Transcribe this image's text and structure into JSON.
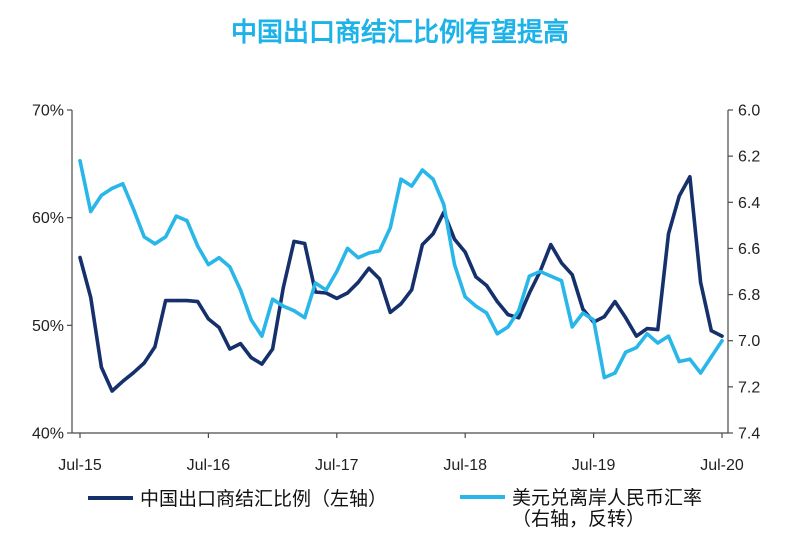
{
  "chart_data": {
    "type": "line",
    "title": "中国出口商结汇比例有望提高",
    "title_color": "#1db3e8",
    "x": [
      "Jul-15",
      "Aug-15",
      "Sep-15",
      "Oct-15",
      "Nov-15",
      "Dec-15",
      "Jan-16",
      "Feb-16",
      "Mar-16",
      "Apr-16",
      "May-16",
      "Jun-16",
      "Jul-16",
      "Aug-16",
      "Sep-16",
      "Oct-16",
      "Nov-16",
      "Dec-16",
      "Jan-17",
      "Feb-17",
      "Mar-17",
      "Apr-17",
      "May-17",
      "Jun-17",
      "Jul-17",
      "Aug-17",
      "Sep-17",
      "Oct-17",
      "Nov-17",
      "Dec-17",
      "Jan-18",
      "Feb-18",
      "Mar-18",
      "Apr-18",
      "May-18",
      "Jun-18",
      "Jul-18",
      "Aug-18",
      "Sep-18",
      "Oct-18",
      "Nov-18",
      "Dec-18",
      "Jan-19",
      "Feb-19",
      "Mar-19",
      "Apr-19",
      "May-19",
      "Jun-19",
      "Jul-19",
      "Aug-19",
      "Sep-19",
      "Oct-19",
      "Nov-19",
      "Dec-19",
      "Jan-20",
      "Feb-20",
      "Mar-20",
      "Apr-20",
      "May-20",
      "Jun-20",
      "Jul-20"
    ],
    "x_tick_labels": [
      "Jul-15",
      "Jul-16",
      "Jul-17",
      "Jul-18",
      "Jul-19",
      "Jul-20"
    ],
    "y_left": {
      "range": [
        40,
        70
      ],
      "ticks": [
        40,
        50,
        60,
        70
      ],
      "tick_labels": [
        "40%",
        "50%",
        "60%",
        "70%"
      ]
    },
    "y_right": {
      "range": [
        6.0,
        7.4
      ],
      "reversed": true,
      "ticks": [
        6.0,
        6.2,
        6.4,
        6.6,
        6.8,
        7.0,
        7.2,
        7.4
      ],
      "tick_labels": [
        "6.0",
        "6.2",
        "6.4",
        "6.6",
        "6.8",
        "7.0",
        "7.2",
        "7.4"
      ]
    },
    "grid": false,
    "legend_position": "bottom",
    "series": [
      {
        "name": "中国出口商结汇比例",
        "legend_note": "（左轴）",
        "axis": "left",
        "color": "#16306c",
        "values": [
          56.3,
          52.6,
          46.1,
          43.9,
          44.8,
          45.6,
          46.5,
          48.0,
          52.3,
          52.3,
          52.3,
          52.2,
          50.6,
          49.8,
          47.8,
          48.3,
          47.0,
          46.4,
          47.8,
          53.5,
          57.8,
          57.6,
          53.1,
          53.0,
          52.5,
          53.0,
          54.0,
          55.3,
          54.3,
          51.2,
          52.0,
          53.3,
          57.5,
          58.5,
          60.5,
          58.0,
          56.8,
          54.5,
          53.7,
          52.2,
          51.0,
          50.7,
          53.0,
          55.0,
          57.5,
          55.8,
          54.7,
          51.5,
          50.3,
          50.8,
          52.2,
          50.7,
          49.0,
          49.7,
          49.6,
          58.5,
          62.0,
          63.8,
          54.0,
          49.5,
          49.0
        ]
      },
      {
        "name": "美元兑离岸人民币汇率",
        "legend_note": "（右轴，反转）",
        "axis": "right",
        "color": "#29b6e8",
        "values": [
          6.22,
          6.44,
          6.37,
          6.34,
          6.32,
          6.43,
          6.55,
          6.58,
          6.55,
          6.46,
          6.48,
          6.59,
          6.67,
          6.64,
          6.68,
          6.78,
          6.91,
          6.98,
          6.82,
          6.85,
          6.87,
          6.9,
          6.75,
          6.78,
          6.7,
          6.6,
          6.64,
          6.62,
          6.61,
          6.51,
          6.3,
          6.33,
          6.26,
          6.3,
          6.41,
          6.67,
          6.81,
          6.85,
          6.88,
          6.97,
          6.94,
          6.87,
          6.72,
          6.7,
          6.72,
          6.74,
          6.94,
          6.88,
          6.91,
          7.16,
          7.14,
          7.05,
          7.03,
          6.97,
          7.01,
          6.98,
          7.09,
          7.08,
          7.14,
          7.07,
          7.0
        ]
      }
    ]
  }
}
